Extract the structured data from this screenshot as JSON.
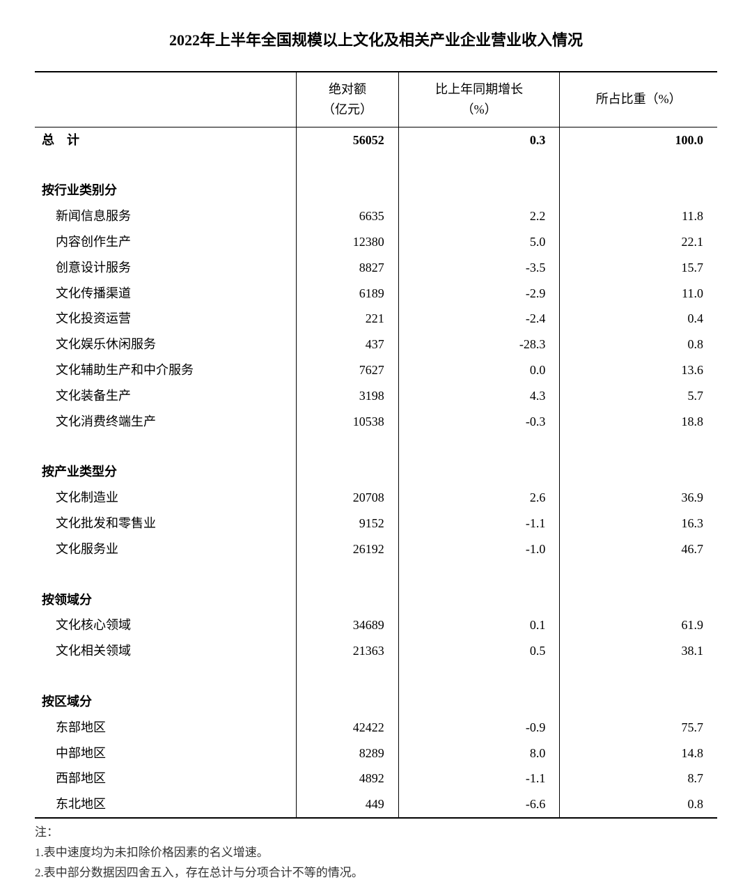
{
  "title": "2022年上半年全国规模以上文化及相关产业企业营业收入情况",
  "columns": {
    "label": "",
    "amount": "绝对额\n（亿元）",
    "growth": "比上年同期增长\n（%）",
    "share": "所占比重（%）"
  },
  "total": {
    "label": "总　计",
    "amount": "56052",
    "growth": "0.3",
    "share": "100.0"
  },
  "sections": [
    {
      "header": "按行业类别分",
      "rows": [
        {
          "label": "新闻信息服务",
          "amount": "6635",
          "growth": "2.2",
          "share": "11.8"
        },
        {
          "label": "内容创作生产",
          "amount": "12380",
          "growth": "5.0",
          "share": "22.1"
        },
        {
          "label": "创意设计服务",
          "amount": "8827",
          "growth": "-3.5",
          "share": "15.7"
        },
        {
          "label": "文化传播渠道",
          "amount": "6189",
          "growth": "-2.9",
          "share": "11.0"
        },
        {
          "label": "文化投资运营",
          "amount": "221",
          "growth": "-2.4",
          "share": "0.4"
        },
        {
          "label": "文化娱乐休闲服务",
          "amount": "437",
          "growth": "-28.3",
          "share": "0.8"
        },
        {
          "label": "文化辅助生产和中介服务",
          "amount": "7627",
          "growth": "0.0",
          "share": "13.6"
        },
        {
          "label": "文化装备生产",
          "amount": "3198",
          "growth": "4.3",
          "share": "5.7"
        },
        {
          "label": "文化消费终端生产",
          "amount": "10538",
          "growth": "-0.3",
          "share": "18.8"
        }
      ]
    },
    {
      "header": "按产业类型分",
      "rows": [
        {
          "label": "文化制造业",
          "amount": "20708",
          "growth": "2.6",
          "share": "36.9"
        },
        {
          "label": "文化批发和零售业",
          "amount": "9152",
          "growth": "-1.1",
          "share": "16.3"
        },
        {
          "label": "文化服务业",
          "amount": "26192",
          "growth": "-1.0",
          "share": "46.7"
        }
      ]
    },
    {
      "header": "按领域分",
      "rows": [
        {
          "label": "文化核心领域",
          "amount": "34689",
          "growth": "0.1",
          "share": "61.9"
        },
        {
          "label": "文化相关领域",
          "amount": "21363",
          "growth": "0.5",
          "share": "38.1"
        }
      ]
    },
    {
      "header": "按区域分",
      "rows": [
        {
          "label": "东部地区",
          "amount": "42422",
          "growth": "-0.9",
          "share": "75.7"
        },
        {
          "label": "中部地区",
          "amount": "8289",
          "growth": "8.0",
          "share": "14.8"
        },
        {
          "label": "西部地区",
          "amount": "4892",
          "growth": "-1.1",
          "share": "8.7"
        },
        {
          "label": "东北地区",
          "amount": "449",
          "growth": "-6.6",
          "share": "0.8"
        }
      ]
    }
  ],
  "notes": {
    "header": "注：",
    "items": [
      "1.表中速度均为未扣除价格因素的名义增速。",
      "2.表中部分数据因四舍五入，存在总计与分项合计不等的情况。"
    ]
  },
  "style": {
    "background_color": "#ffffff",
    "text_color": "#000000",
    "border_color": "#000000",
    "title_fontsize": 22,
    "body_fontsize": 18,
    "notes_fontsize": 17
  }
}
